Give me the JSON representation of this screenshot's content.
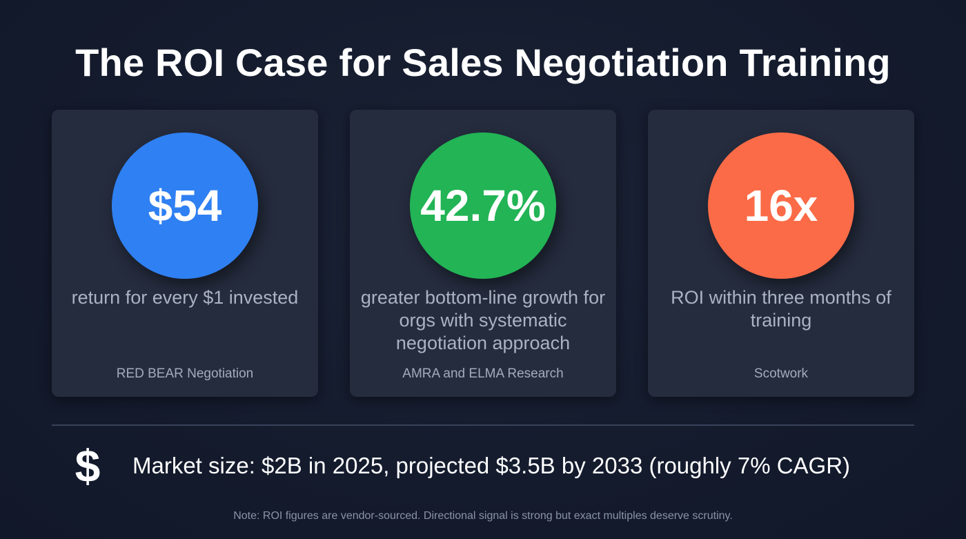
{
  "title": "The ROI Case for Sales Negotiation Training",
  "cards": [
    {
      "value": "$54",
      "color": "#2f80f2",
      "description": "return for every $1 invested",
      "source": "RED BEAR Negotiation"
    },
    {
      "value": "42.7%",
      "color": "#22b455",
      "description": "greater bottom-line growth for orgs with systematic negotiation approach",
      "source": "AMRA and ELMA Research"
    },
    {
      "value": "16x",
      "color": "#fb6b47",
      "description": "ROI within three months of training",
      "source": "Scotwork"
    }
  ],
  "market": {
    "icon": "dollar-sign-icon",
    "icon_glyph": "$",
    "text": "Market size: $2B in 2025, projected $3.5B by 2033 (roughly 7% CAGR)"
  },
  "note": "Note: ROI figures are vendor-sourced. Directional signal is strong but exact multiples deserve scrutiny."
}
